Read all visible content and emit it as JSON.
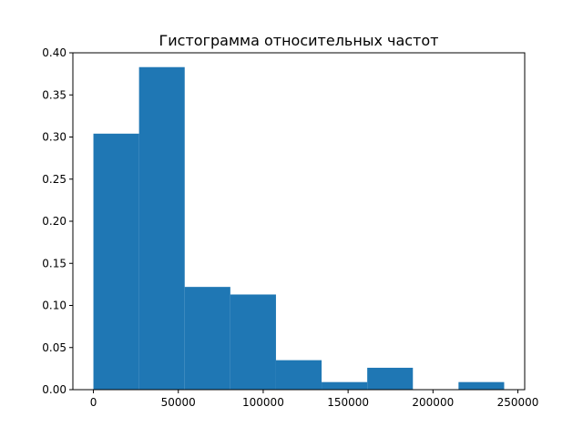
{
  "chart_data": {
    "type": "bar",
    "title": "Гистограмма относительных частот",
    "xlabel": "",
    "ylabel": "",
    "bin_edges": [
      0,
      26880,
      53760,
      80640,
      107520,
      134400,
      161280,
      188160,
      215040,
      241920
    ],
    "values": [
      0.304,
      0.383,
      0.122,
      0.113,
      0.035,
      0.009,
      0.026,
      0.0,
      0.009
    ],
    "xlim": [
      -12096,
      254016
    ],
    "ylim": [
      0,
      0.4
    ],
    "x_ticks": [
      0,
      50000,
      100000,
      150000,
      200000,
      250000
    ],
    "x_tick_labels": [
      "0",
      "50000",
      "100000",
      "150000",
      "200000",
      "250000"
    ],
    "y_ticks": [
      0.0,
      0.05,
      0.1,
      0.15,
      0.2,
      0.25,
      0.3,
      0.35,
      0.4
    ],
    "y_tick_labels": [
      "0.00",
      "0.05",
      "0.10",
      "0.15",
      "0.20",
      "0.25",
      "0.30",
      "0.35",
      "0.40"
    ],
    "bar_color": "#1f77b4",
    "grid": false,
    "legend": "none"
  }
}
